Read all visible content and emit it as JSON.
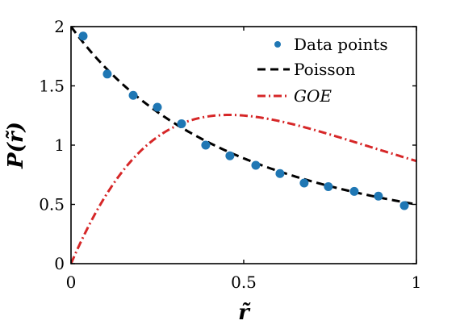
{
  "chart_data": {
    "type": "scatter",
    "xlabel": "r̃",
    "ylabel": "P(r̃)",
    "xlim": [
      0,
      1
    ],
    "ylim": [
      0,
      2
    ],
    "x_ticks": [
      "0",
      "0.5",
      "1"
    ],
    "y_ticks": [
      "0",
      "0.5",
      "1",
      "1.5",
      "2"
    ],
    "grid": false,
    "legend_position": "top-right",
    "series": [
      {
        "name": "Data points",
        "kind": "scatter",
        "color": "#1f77b4",
        "x": [
          0.035,
          0.105,
          0.18,
          0.25,
          0.32,
          0.39,
          0.46,
          0.535,
          0.605,
          0.675,
          0.745,
          0.82,
          0.89,
          0.965
        ],
        "y": [
          1.92,
          1.6,
          1.42,
          1.32,
          1.18,
          1.0,
          0.91,
          0.83,
          0.76,
          0.68,
          0.65,
          0.61,
          0.57,
          0.49
        ]
      },
      {
        "name": "Poisson",
        "kind": "line",
        "style": "dashed",
        "color": "#000000",
        "formula": "2/(1+r)^2"
      },
      {
        "name": "GOE",
        "kind": "line",
        "style": "dash-dot",
        "color": "#d62728",
        "formula": "(27/4)*(r+r^2)/(1+r+r^2)^2.5"
      }
    ]
  }
}
